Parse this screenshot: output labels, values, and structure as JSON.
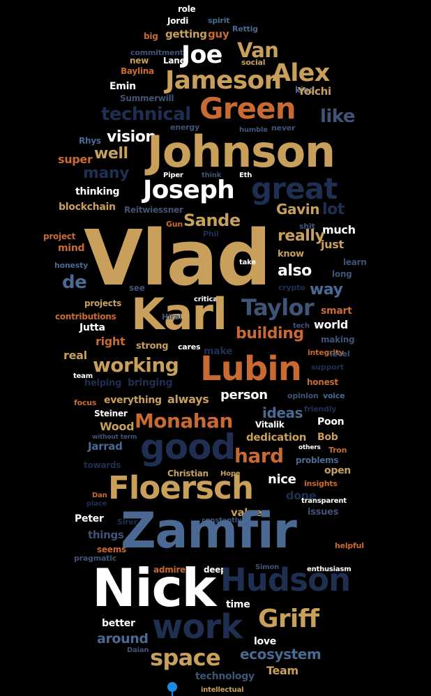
{
  "colors": {
    "background": "#000000",
    "gold": "#c9a05b",
    "orange": "#c96a32",
    "white": "#ffffff",
    "navy": "#1f2f52",
    "blue": "#4a6a93",
    "slate": "#3f5477"
  },
  "words": [
    "role",
    "Jordi",
    "spirit",
    "big",
    "getting",
    "guy",
    "Rettig",
    "Van",
    "Joe",
    "commitment",
    "new",
    "Lane",
    "social",
    "Alex",
    "Jameson",
    "Baylina",
    "Emin",
    "kind",
    "Yoichi",
    "Summerwill",
    "Green",
    "technical",
    "like",
    "energy",
    "never",
    "humble",
    "Rhys",
    "vision",
    "Johnson",
    "super",
    "well",
    "many",
    "Piper",
    "think",
    "Eth",
    "great",
    "Joseph",
    "thinking",
    "blockchain",
    "Reitwiessner",
    "Gavin",
    "lot",
    "Sande",
    "Gun",
    "shit",
    "project",
    "Phil",
    "much",
    "Vlad",
    "really",
    "mind",
    "know",
    "just",
    "take",
    "honesty",
    "also",
    "long",
    "learn",
    "de",
    "see",
    "crypto",
    "way",
    "critical",
    "Karl",
    "Taylor",
    "projects",
    "smart",
    "contributions",
    "Hirai",
    "tech",
    "world",
    "Jutta",
    "building",
    "making",
    "right",
    "strong",
    "cares",
    "real",
    "make",
    "integrity",
    "level",
    "working",
    "team",
    "Lubin",
    "support",
    "helping",
    "bringing",
    "honest",
    "voice",
    "focus",
    "everything",
    "always",
    "person",
    "opinion",
    "Steiner",
    "ideas",
    "friendly",
    "Monahan",
    "Wood",
    "without term",
    "Vitalik",
    "Poon",
    "dedication",
    "Bob",
    "Jarrad",
    "good",
    "others",
    "Tron",
    "towards",
    "hard",
    "problems",
    "open",
    "Christian",
    "Hope",
    "nice",
    "insights",
    "Floersch",
    "Dan",
    "place",
    "done",
    "transparent",
    "Peter",
    "values",
    "issues",
    "constantly",
    "Sirer",
    "things",
    "Zamfir",
    "seems",
    "pragmatic",
    "helpful",
    "admire",
    "deep",
    "Simon",
    "enthusiasm",
    "Nick",
    "Hudson",
    "time",
    "Griff",
    "better",
    "work",
    "love",
    "around",
    "Daian",
    "space",
    "ecosystem",
    "technology",
    "Team",
    "intellectual"
  ]
}
